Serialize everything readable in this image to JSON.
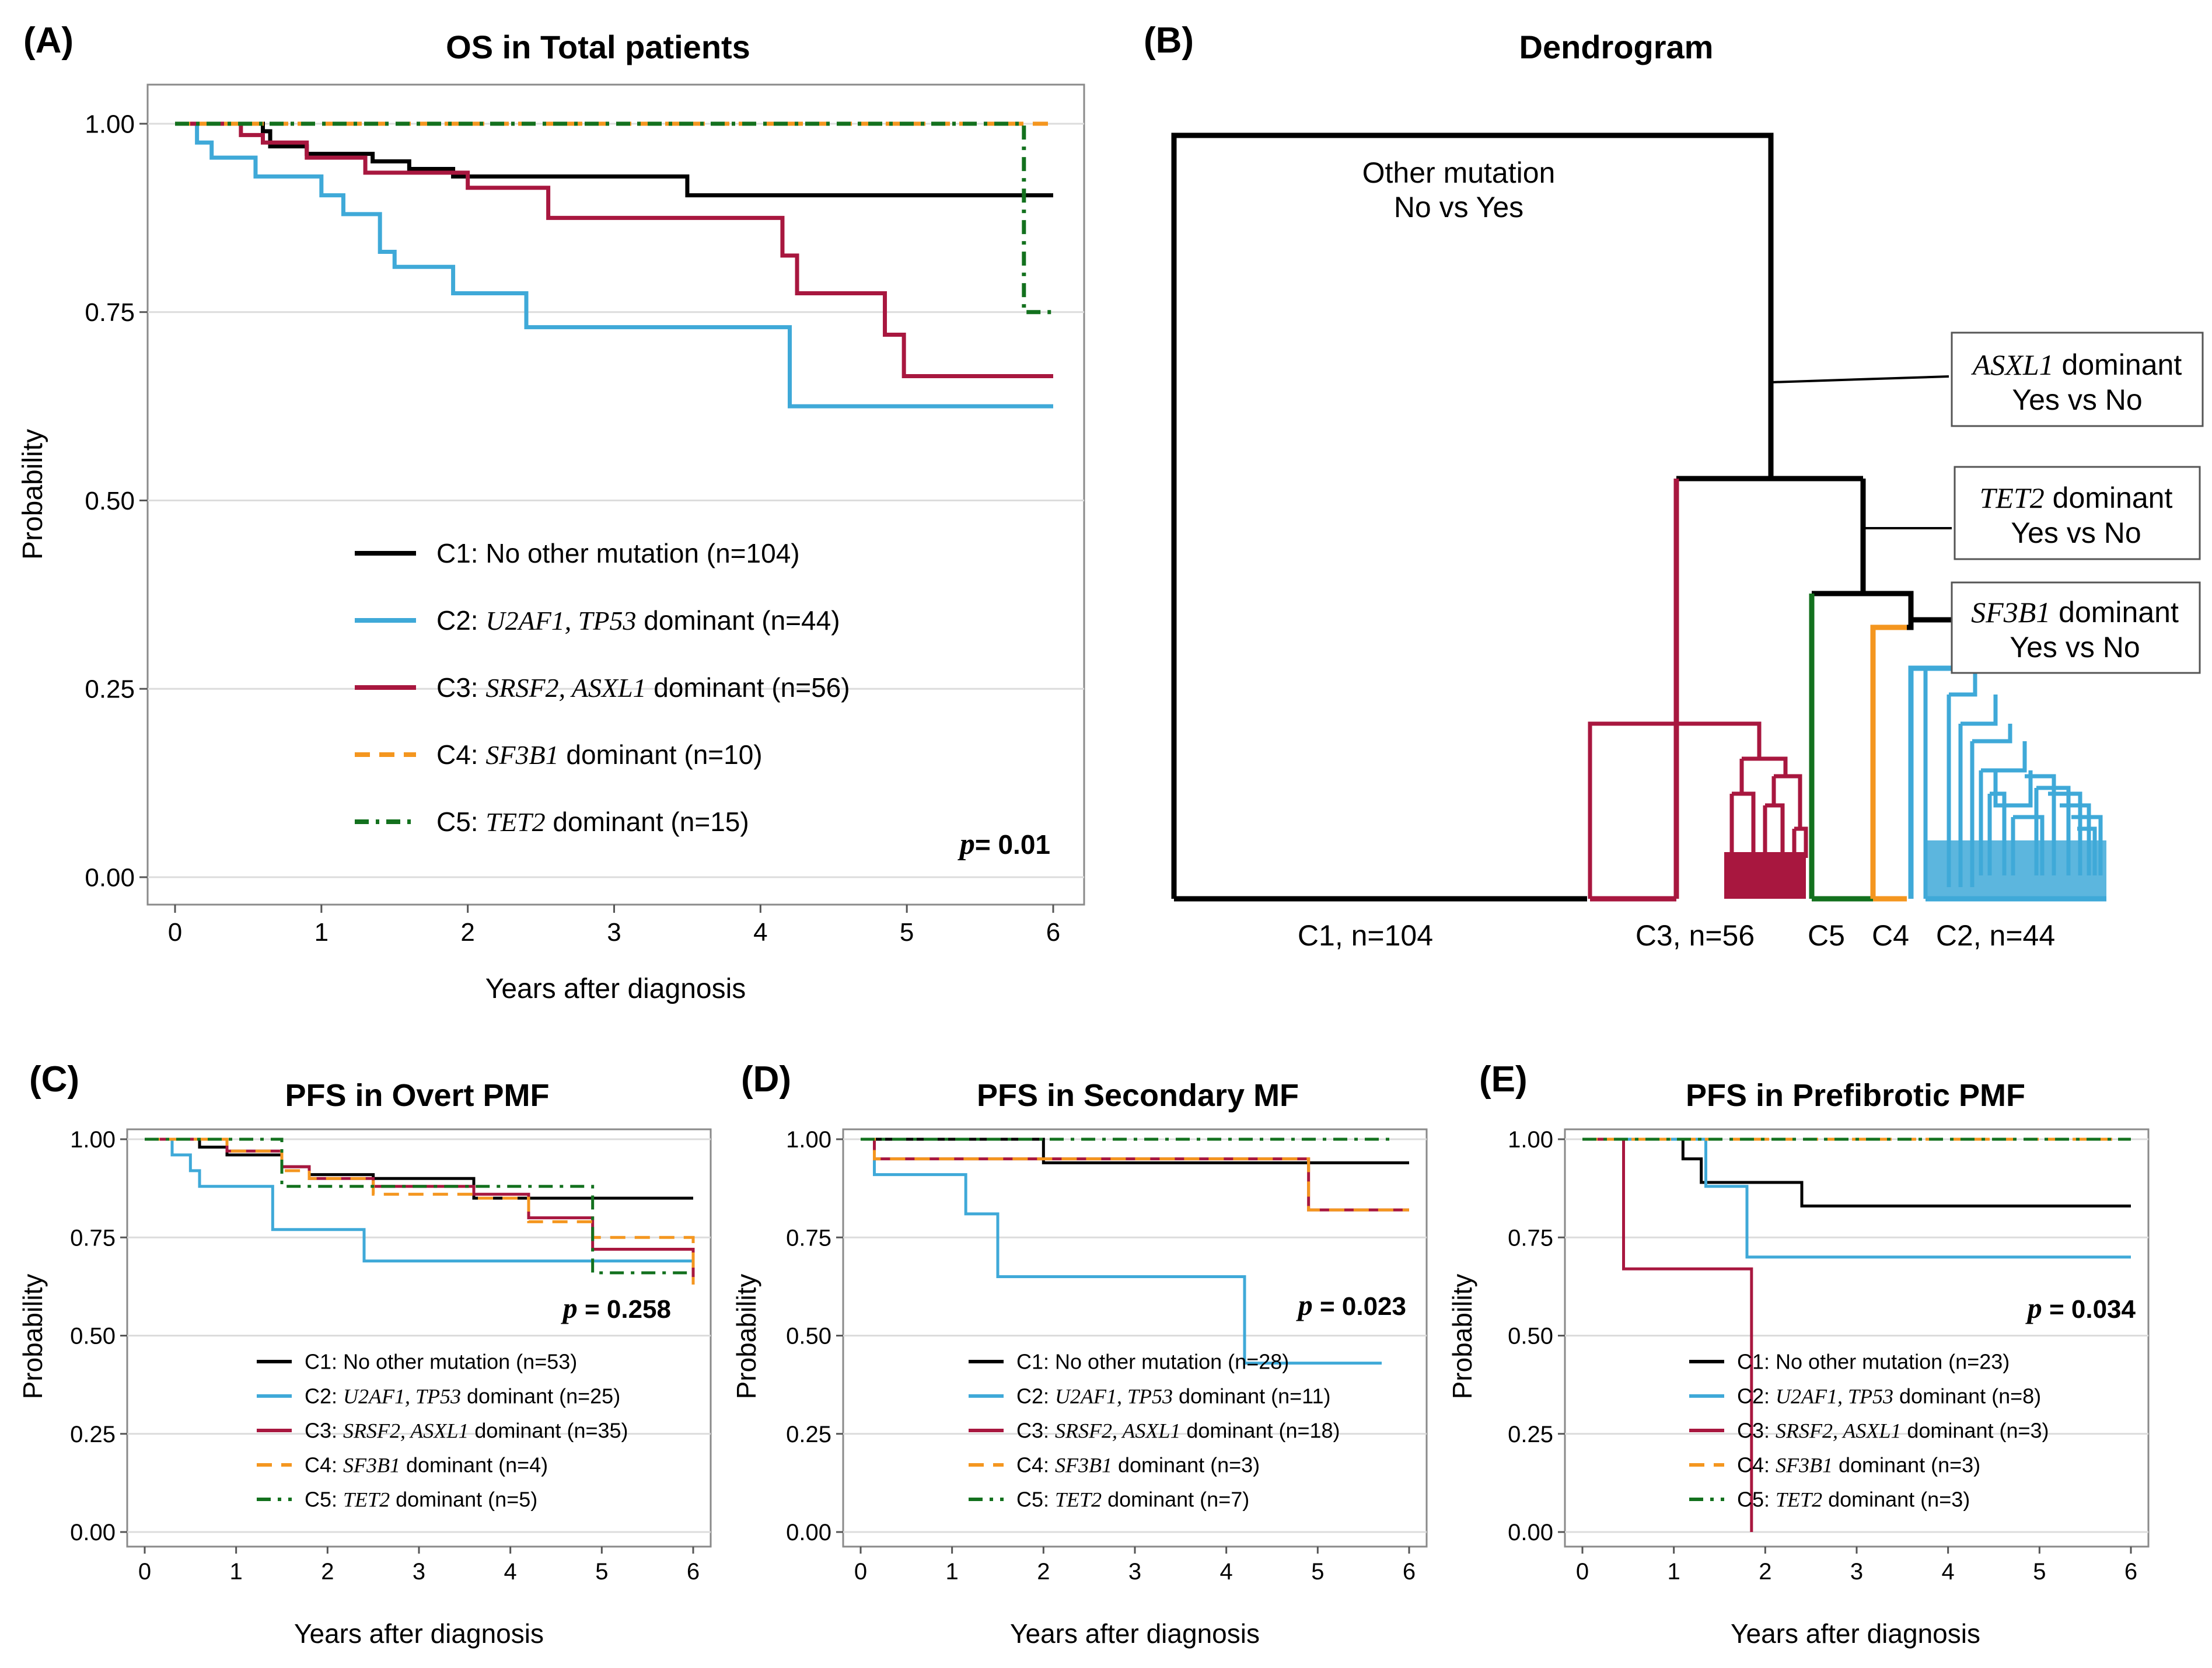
{
  "colors": {
    "C1": "#000000",
    "C2": "#3fa9d8",
    "C3": "#a8173f",
    "C4": "#f4961f",
    "C5": "#13711e",
    "grid": "#dcdcdc",
    "frame": "#8a8a8a"
  },
  "panels": {
    "A": {
      "tag": "(A)",
      "title": "OS in Total patients",
      "xlabel": "Years after diagnosis",
      "ylabel": "Probability",
      "pvalue": {
        "p": "p",
        "val": "= 0.01"
      },
      "legend": [
        {
          "pre": "C1: No other mutation (n=104)",
          "it": "",
          "post": ""
        },
        {
          "pre": "C2: ",
          "it": "U2AF1, TP53",
          "post": "  dominant (n=44)"
        },
        {
          "pre": "C3: ",
          "it": "SRSF2, ASXL1",
          "post": "  dominant (n=56)"
        },
        {
          "pre": "C4: ",
          "it": "SF3B1",
          "post": "  dominant (n=10)"
        },
        {
          "pre": "C5: ",
          "it": "TET2",
          "post": " dominant (n=15)"
        }
      ]
    },
    "B": {
      "tag": "(B)",
      "title": "Dendrogram",
      "annotations": {
        "root_line1": "Other mutation",
        "root_line2": "No vs Yes",
        "asxl1_gene": "ASXL1",
        "asxl1_rest": " dominant",
        "asxl1_line2": "Yes vs No",
        "tet2_gene": "TET2",
        "tet2_rest": " dominant",
        "tet2_line2": "Yes vs No",
        "sf3b1_gene": "SF3B1",
        "sf3b1_rest": " dominant",
        "sf3b1_line2": "Yes vs No"
      },
      "leaf_labels": [
        "C1, n=104",
        "C3, n=56",
        "C5",
        "C4",
        "C2, n=44"
      ]
    },
    "C": {
      "tag": "(C)",
      "title": "PFS in Overt PMF",
      "xlabel": "Years after diagnosis",
      "ylabel": "Probability",
      "pvalue": {
        "p": "p",
        "val": " = 0.258"
      },
      "legend": [
        {
          "pre": "C1: No other mutation (n=53)",
          "it": "",
          "post": ""
        },
        {
          "pre": "C2: ",
          "it": "U2AF1, TP53",
          "post": " dominant (n=25)"
        },
        {
          "pre": "C3: ",
          "it": "SRSF2, ASXL1",
          "post": " dominant (n=35)"
        },
        {
          "pre": "C4: ",
          "it": "SF3B1",
          "post": " dominant (n=4)"
        },
        {
          "pre": "C5: ",
          "it": "TET2",
          "post": "  dominant (n=5)"
        }
      ]
    },
    "D": {
      "tag": "(D)",
      "title": "PFS in Secondary MF",
      "xlabel": "Years after diagnosis",
      "ylabel": "Probability",
      "pvalue": {
        "p": "p",
        "val": " = 0.023"
      },
      "legend": [
        {
          "pre": "C1: No other mutation (n=28)",
          "it": "",
          "post": ""
        },
        {
          "pre": "C2: ",
          "it": "U2AF1, TP53",
          "post": " dominant (n=11)"
        },
        {
          "pre": "C3: ",
          "it": "SRSF2, ASXL1",
          "post": " dominant (n=18)"
        },
        {
          "pre": "C4: ",
          "it": "SF3B1",
          "post": "  dominant (n=3)"
        },
        {
          "pre": "C5: ",
          "it": "TET2",
          "post": " dominant (n=7)"
        }
      ]
    },
    "E": {
      "tag": "(E)",
      "title": "PFS in Prefibrotic PMF",
      "xlabel": "Years after diagnosis",
      "ylabel": "Probability",
      "pvalue": {
        "p": "p",
        "val": " = 0.034"
      },
      "legend": [
        {
          "pre": "C1: No other mutation (n=23)",
          "it": "",
          "post": ""
        },
        {
          "pre": "C2: ",
          "it": "U2AF1, TP53",
          "post": " dominant (n=8)"
        },
        {
          "pre": "C3: ",
          "it": "SRSF2, ASXL1",
          "post": " dominant (n=3)"
        },
        {
          "pre": "C4: ",
          "it": "SF3B1",
          "post": "  dominant (n=3)"
        },
        {
          "pre": "C5: ",
          "it": "TET2",
          "post": " dominant (n=3)"
        }
      ]
    }
  },
  "chart_data": [
    {
      "id": "A",
      "type": "line",
      "title": "OS in Total patients",
      "xlabel": "Years after diagnosis",
      "ylabel": "Probability",
      "xlim": [
        0,
        6
      ],
      "ylim": [
        0,
        1
      ],
      "xticks": [
        "0",
        "1",
        "2",
        "3",
        "4",
        "5",
        "6"
      ],
      "yticks": [
        "0.00",
        "0.25",
        "0.50",
        "0.75",
        "1.00"
      ],
      "series": [
        {
          "name": "C1",
          "x": [
            0,
            0.5,
            0.6,
            0.65,
            0.9,
            1.35,
            1.6,
            1.9,
            3.5,
            6
          ],
          "y": [
            1,
            1,
            0.99,
            0.97,
            0.96,
            0.95,
            0.94,
            0.93,
            0.905,
            0.905
          ]
        },
        {
          "name": "C2",
          "x": [
            0,
            0.15,
            0.25,
            0.55,
            1.0,
            1.15,
            1.4,
            1.5,
            1.9,
            2.4,
            4.2,
            6
          ],
          "y": [
            1,
            0.975,
            0.955,
            0.93,
            0.905,
            0.88,
            0.83,
            0.81,
            0.775,
            0.73,
            0.625,
            0.625
          ]
        },
        {
          "name": "C3",
          "x": [
            0,
            0.45,
            0.6,
            0.9,
            1.3,
            2.0,
            2.55,
            4.15,
            4.25,
            4.85,
            4.98,
            6
          ],
          "y": [
            1,
            0.985,
            0.975,
            0.955,
            0.935,
            0.915,
            0.875,
            0.825,
            0.775,
            0.72,
            0.665,
            0.665
          ]
        },
        {
          "name": "C4",
          "x": [
            0,
            6
          ],
          "y": [
            1,
            1
          ]
        },
        {
          "name": "C5",
          "x": [
            0,
            5.8,
            6
          ],
          "y": [
            1,
            0.75,
            0.75
          ]
        }
      ],
      "p_value": "0.01"
    },
    {
      "id": "C",
      "type": "line",
      "title": "PFS in Overt PMF",
      "xlim": [
        0,
        6
      ],
      "ylim": [
        0,
        1
      ],
      "xticks": [
        "0",
        "1",
        "2",
        "3",
        "4",
        "5",
        "6"
      ],
      "yticks": [
        "0.00",
        "0.25",
        "0.50",
        "0.75",
        "1.00"
      ],
      "series": [
        {
          "name": "C1",
          "x": [
            0,
            0.6,
            0.9,
            1.5,
            1.8,
            2.5,
            3.6,
            6
          ],
          "y": [
            1,
            0.98,
            0.96,
            0.93,
            0.91,
            0.9,
            0.85,
            0.85
          ]
        },
        {
          "name": "C2",
          "x": [
            0,
            0.3,
            0.5,
            0.6,
            1.4,
            2.4,
            6
          ],
          "y": [
            1,
            0.96,
            0.92,
            0.88,
            0.77,
            0.69,
            0.69
          ]
        },
        {
          "name": "C3",
          "x": [
            0,
            0.9,
            1.5,
            1.8,
            2.5,
            3.6,
            4.2,
            4.9,
            6
          ],
          "y": [
            1,
            0.97,
            0.93,
            0.9,
            0.88,
            0.86,
            0.8,
            0.72,
            0.64
          ]
        },
        {
          "name": "C4",
          "x": [
            0,
            0.9,
            1.5,
            1.8,
            2.5,
            3.6,
            4.2,
            4.9,
            6
          ],
          "y": [
            1,
            0.97,
            0.92,
            0.9,
            0.86,
            0.85,
            0.79,
            0.75,
            0.63
          ]
        },
        {
          "name": "C5",
          "x": [
            0,
            1.5,
            2.5,
            3.5,
            4.9,
            6
          ],
          "y": [
            1,
            0.88,
            0.88,
            0.88,
            0.66,
            0.66
          ]
        }
      ],
      "p_value": "0.258"
    },
    {
      "id": "D",
      "type": "line",
      "title": "PFS in Secondary MF",
      "xlim": [
        0,
        6
      ],
      "ylim": [
        0,
        1
      ],
      "xticks": [
        "0",
        "1",
        "2",
        "3",
        "4",
        "5",
        "6"
      ],
      "yticks": [
        "0.00",
        "0.25",
        "0.50",
        "0.75",
        "1.00"
      ],
      "series": [
        {
          "name": "C1",
          "x": [
            0,
            2.0,
            6
          ],
          "y": [
            1,
            0.94,
            0.94
          ]
        },
        {
          "name": "C2",
          "x": [
            0,
            0.15,
            1.15,
            1.5,
            4.2,
            5.7
          ],
          "y": [
            1,
            0.91,
            0.81,
            0.65,
            0.43,
            0.43
          ]
        },
        {
          "name": "C3",
          "x": [
            0,
            0.15,
            4.9,
            6
          ],
          "y": [
            1,
            0.95,
            0.82,
            0.82
          ]
        },
        {
          "name": "C4",
          "x": [
            0,
            0.15,
            4.9,
            6
          ],
          "y": [
            1,
            0.95,
            0.82,
            0.82
          ]
        },
        {
          "name": "C5",
          "x": [
            0,
            5.8
          ],
          "y": [
            1,
            1
          ]
        }
      ],
      "p_value": "0.023"
    },
    {
      "id": "E",
      "type": "line",
      "title": "PFS in Prefibrotic PMF",
      "xlim": [
        0,
        6
      ],
      "ylim": [
        0,
        1
      ],
      "xticks": [
        "0",
        "1",
        "2",
        "3",
        "4",
        "5",
        "6"
      ],
      "yticks": [
        "0.00",
        "0.25",
        "0.50",
        "0.75",
        "1.00"
      ],
      "series": [
        {
          "name": "C1",
          "x": [
            0,
            1.1,
            1.3,
            2.4,
            6
          ],
          "y": [
            1,
            0.95,
            0.89,
            0.83,
            0.83
          ]
        },
        {
          "name": "C2",
          "x": [
            0,
            1.35,
            1.8,
            6
          ],
          "y": [
            1,
            0.88,
            0.7,
            0.7
          ]
        },
        {
          "name": "C3",
          "x": [
            0,
            0.45,
            1.85
          ],
          "y": [
            1,
            0.67,
            0
          ]
        },
        {
          "name": "C4",
          "x": [
            0,
            6
          ],
          "y": [
            1,
            1
          ]
        },
        {
          "name": "C5",
          "x": [
            0,
            6
          ],
          "y": [
            1,
            1
          ]
        }
      ],
      "p_value": "0.034"
    }
  ]
}
